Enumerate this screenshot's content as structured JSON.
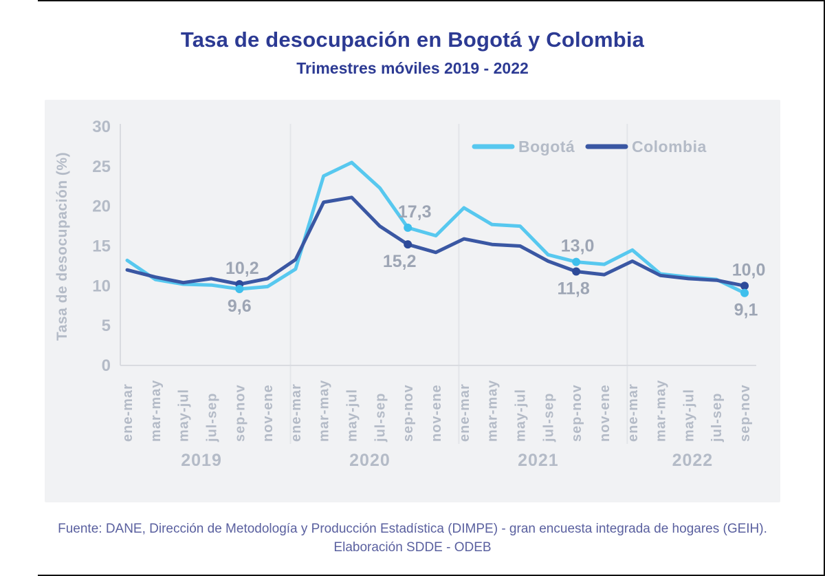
{
  "title": "Tasa de desocupación en Bogotá y Colombia",
  "subtitle": "Trimestres móviles 2019 - 2022",
  "footer": {
    "line1": "Fuente: DANE, Dirección de Metodología y Producción Estadística (DIMPE) - gran encuesta integrada de hogares (GEIH).",
    "line2": "Elaboración SDDE - ODEB"
  },
  "colors": {
    "title": "#2c3a93",
    "panel_background": "#f1f2f4",
    "axis_text": "#b4bbc7",
    "axis_line": "#d9dbe0",
    "separator_line": "#e3e5e9",
    "annotation_text": "#9da5b4",
    "footer_text": "#5a609f",
    "bogota": "#57c8ef",
    "colombia": "#3a57a3"
  },
  "chart_data": {
    "type": "line",
    "title": "Tasa de desocupación en Bogotá y Colombia",
    "subtitle": "Trimestres móviles 2019 - 2022",
    "ylabel": "Tasa de desocupación (%)",
    "xlabel": "",
    "ylim": [
      0,
      30
    ],
    "yticks": [
      0,
      5,
      10,
      15,
      20,
      25,
      30
    ],
    "grid": false,
    "legend_position": "top-right",
    "x_tick_labels": [
      "ene-mar",
      "mar-may",
      "may-jul",
      "jul-sep",
      "sep-nov",
      "nov-ene",
      "ene-mar",
      "mar-may",
      "may-jul",
      "jul-sep",
      "sep-nov",
      "nov-ene",
      "ene-mar",
      "mar-may",
      "may-jul",
      "jul-sep",
      "sep-nov",
      "nov-ene",
      "ene-mar",
      "mar-may",
      "may-jul",
      "jul-sep",
      "sep-nov"
    ],
    "year_groups": [
      {
        "label": "2019",
        "count": 6
      },
      {
        "label": "2020",
        "count": 6
      },
      {
        "label": "2021",
        "count": 6
      },
      {
        "label": "2022",
        "count": 5
      }
    ],
    "legend": [
      {
        "name": "Bogotá",
        "color": "#57c8ef"
      },
      {
        "name": "Colombia",
        "color": "#3a57a3"
      }
    ],
    "series": [
      {
        "name": "Bogotá",
        "color": "#57c8ef",
        "marker_color": "#3fbfec",
        "values": [
          13.2,
          10.8,
          10.2,
          10.1,
          9.6,
          9.9,
          12.1,
          23.8,
          25.5,
          22.3,
          17.3,
          16.3,
          19.8,
          17.7,
          17.5,
          13.9,
          13.0,
          12.7,
          14.5,
          11.5,
          11.1,
          10.8,
          9.1
        ]
      },
      {
        "name": "Colombia",
        "color": "#3a57a3",
        "marker_color": "#2d4a99",
        "values": [
          12.0,
          11.1,
          10.4,
          10.9,
          10.2,
          10.9,
          13.3,
          20.5,
          21.1,
          17.5,
          15.2,
          14.2,
          15.9,
          15.2,
          15.0,
          13.1,
          11.8,
          11.4,
          13.1,
          11.3,
          10.9,
          10.7,
          10.0
        ]
      }
    ],
    "annotations": [
      {
        "series": "Colombia",
        "index": 4,
        "label": "10,2",
        "position": "above",
        "dx": 4
      },
      {
        "series": "Bogotá",
        "index": 4,
        "label": "9,6",
        "position": "below",
        "dx": 0
      },
      {
        "series": "Bogotá",
        "index": 10,
        "label": "17,3",
        "position": "above",
        "dx": 10
      },
      {
        "series": "Colombia",
        "index": 10,
        "label": "15,2",
        "position": "below",
        "dx": -12
      },
      {
        "series": "Bogotá",
        "index": 16,
        "label": "13,0",
        "position": "above",
        "dx": 2
      },
      {
        "series": "Colombia",
        "index": 16,
        "label": "11,8",
        "position": "below",
        "dx": -4
      },
      {
        "series": "Colombia",
        "index": 22,
        "label": "10,0",
        "position": "above",
        "dx": 6
      },
      {
        "series": "Bogotá",
        "index": 22,
        "label": "9,1",
        "position": "below",
        "dx": 2
      }
    ]
  }
}
